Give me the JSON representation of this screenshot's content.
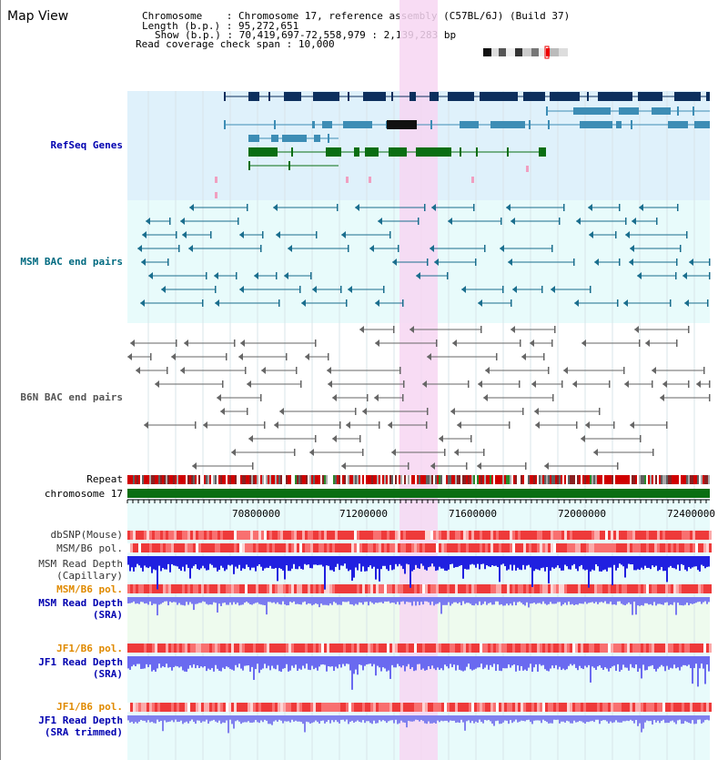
{
  "view": {
    "title": "Map View"
  },
  "header": {
    "chromosome_key": "Chromosome",
    "chromosome_val": "Chromosome 17, reference assembly (C57BL/6J) (Build 37)",
    "length_key": "Length (b.p.)",
    "length_val": "95,272,651",
    "show_key": "Show (b.p.)",
    "show_val": "70,419,697-72,558,979 : 2,139,283 bp",
    "coverage_key": "Read coverage check span",
    "coverage_val": "10,000"
  },
  "tracks": {
    "refseq": "RefSeq Genes",
    "msm_bac": "MSM BAC end pairs",
    "b6n_bac": "B6N BAC end pairs",
    "repeat": "Repeat",
    "chromosome": "chromosome 17",
    "dbsnp": "dbSNP(Mouse)",
    "msm_b6_pol_1": "MSM/B6 pol.",
    "msm_depth_cap_1": "MSM Read Depth",
    "msm_depth_cap_2": "(Capillary)",
    "msm_b6_pol_2": "MSM/B6 pol.",
    "msm_depth_sra_1": "MSM Read Depth",
    "msm_depth_sra_2": "(SRA)",
    "jf1_pol_1": "JF1/B6 pol.",
    "jf1_depth_1": "JF1 Read Depth",
    "jf1_depth_2": "(SRA)",
    "jf1_pol_2": "JF1/B6 pol.",
    "jf1_trim_1": "JF1 Read Depth",
    "jf1_trim_2": "(SRA trimmed)"
  },
  "axis": {
    "ticks": [
      "70800000",
      "71200000",
      "71600000",
      "72000000",
      "72400000"
    ]
  },
  "colors": {
    "refseq_bg": "#dff1fb",
    "msm_bg": "#e8fbfb",
    "highlight": "#f7d6f2",
    "gene_dark": "#0d2f5d",
    "gene_mid": "#3d8db5",
    "gene_green": "#0a6e12",
    "msm_bac": "#1a6e8e",
    "b6n_bac": "#666666",
    "chrom": "#0a6e12",
    "depth_blue": "#2020e0",
    "depth_violet": "#7a7af0",
    "label_blue": "#0000b0",
    "label_teal": "#006a80",
    "label_orange": "#e08a00"
  }
}
